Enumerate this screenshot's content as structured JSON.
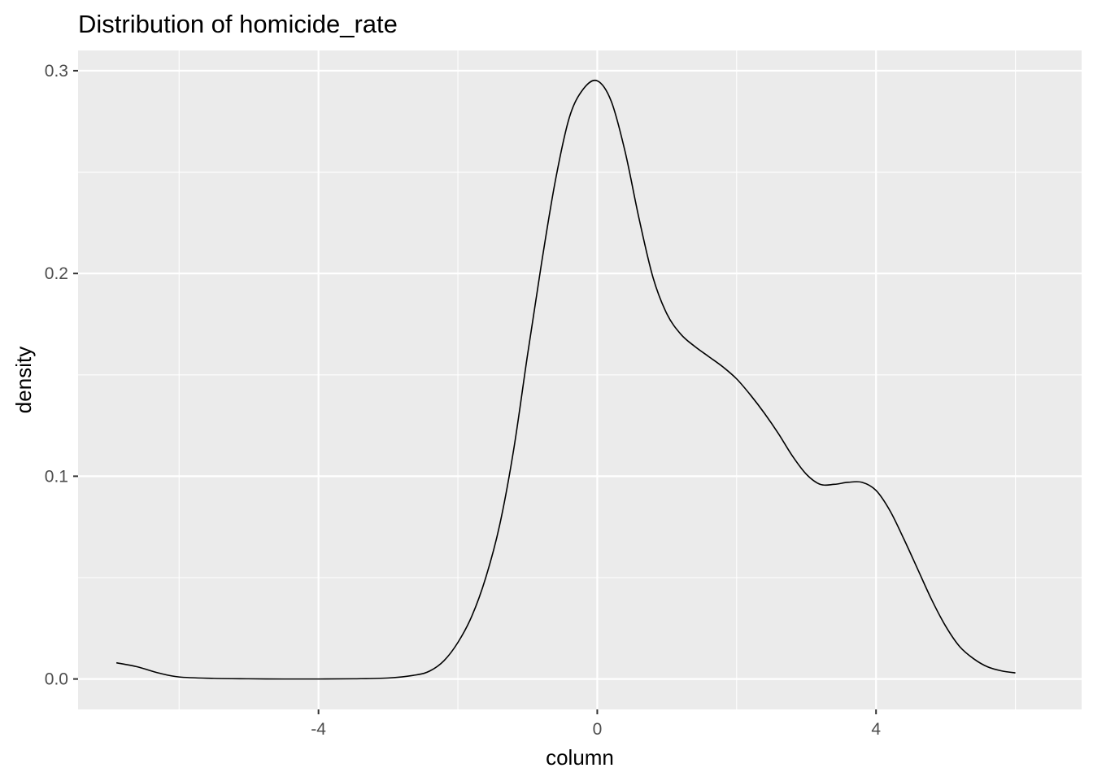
{
  "chart_data": {
    "type": "line",
    "title": "Distribution of homicide_rate",
    "xlabel": "column",
    "ylabel": "density",
    "xlim": [
      -7.45,
      6.95
    ],
    "ylim": [
      -0.015,
      0.31
    ],
    "x_ticks": [
      -4,
      0,
      4
    ],
    "x_tick_labels": [
      "-4",
      "0",
      "4"
    ],
    "x_minor_ticks": [
      -6,
      -2,
      2,
      6
    ],
    "y_ticks": [
      0.0,
      0.1,
      0.2,
      0.3
    ],
    "y_tick_labels": [
      "0.0",
      "0.1",
      "0.2",
      "0.3"
    ],
    "y_minor_ticks": [
      0.05,
      0.15,
      0.25
    ],
    "grid": true,
    "panel_background": "#ebebeb",
    "line_color": "#000000",
    "series": [
      {
        "x": [
          -6.9,
          -6.6,
          -6.3,
          -6.0,
          -5.5,
          -5.0,
          -4.5,
          -4.0,
          -3.5,
          -3.0,
          -2.6,
          -2.4,
          -2.2,
          -2.0,
          -1.8,
          -1.6,
          -1.4,
          -1.2,
          -1.0,
          -0.8,
          -0.6,
          -0.4,
          -0.2,
          0.0,
          0.2,
          0.4,
          0.6,
          0.8,
          1.0,
          1.2,
          1.4,
          1.6,
          1.8,
          2.0,
          2.2,
          2.4,
          2.6,
          2.8,
          3.0,
          3.2,
          3.4,
          3.6,
          3.8,
          4.0,
          4.2,
          4.4,
          4.6,
          4.8,
          5.0,
          5.2,
          5.4,
          5.6,
          5.8,
          6.0
        ],
        "y": [
          0.008,
          0.006,
          0.003,
          0.001,
          0.0003,
          0.0001,
          0.0,
          0.0,
          0.0001,
          0.0005,
          0.002,
          0.004,
          0.009,
          0.018,
          0.031,
          0.05,
          0.076,
          0.113,
          0.16,
          0.205,
          0.246,
          0.277,
          0.291,
          0.295,
          0.285,
          0.26,
          0.227,
          0.198,
          0.18,
          0.17,
          0.164,
          0.159,
          0.154,
          0.148,
          0.14,
          0.131,
          0.121,
          0.11,
          0.101,
          0.096,
          0.096,
          0.097,
          0.097,
          0.093,
          0.083,
          0.069,
          0.054,
          0.039,
          0.026,
          0.016,
          0.01,
          0.006,
          0.004,
          0.003
        ]
      }
    ]
  }
}
